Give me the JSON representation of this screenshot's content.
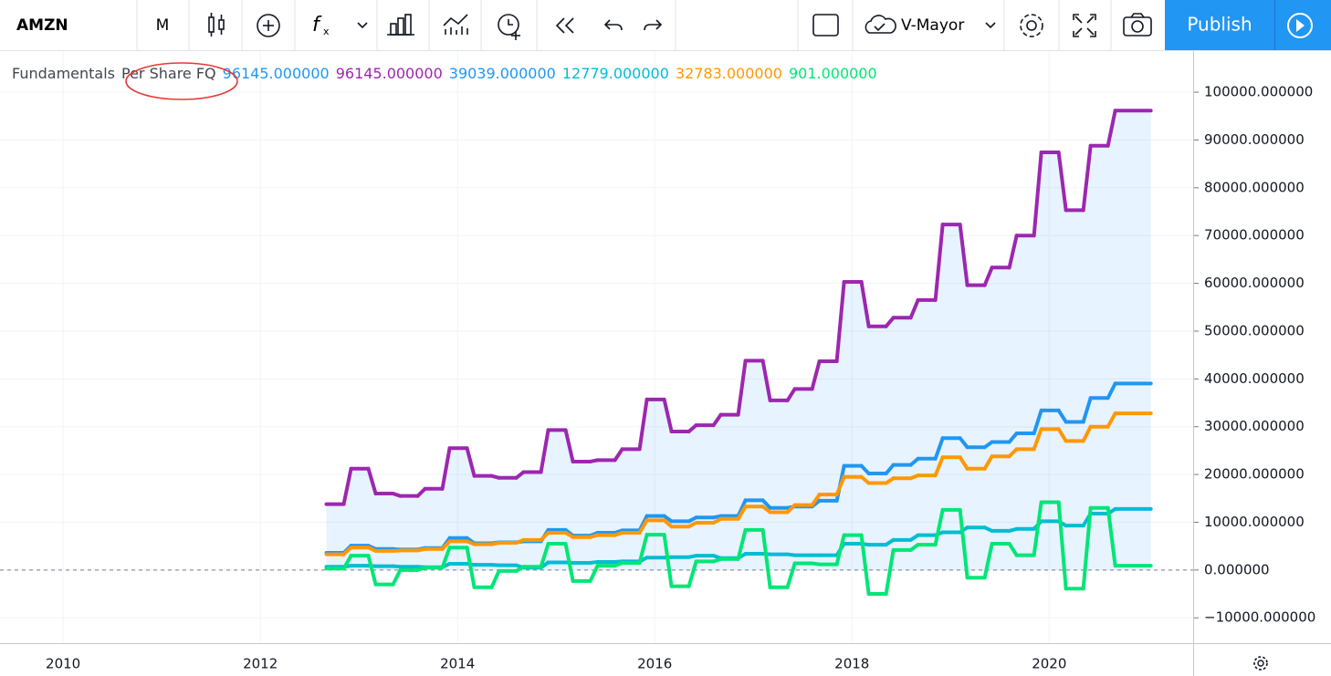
{
  "toolbar": {
    "symbol": "AMZN",
    "interval": "M",
    "layout_name": "V-Mayor",
    "publish": "Publish"
  },
  "chart_data": {
    "type": "line",
    "indicator_name": "Fundamentals",
    "indicator_params": "Per Share FQ",
    "legend_values": [
      {
        "label": "96145.000000",
        "color": "#2196f3"
      },
      {
        "label": "96145.000000",
        "color": "#9c27b0"
      },
      {
        "label": "39039.000000",
        "color": "#2196f3"
      },
      {
        "label": "12779.000000",
        "color": "#00bcd4"
      },
      {
        "label": "32783.000000",
        "color": "#ff9800"
      },
      {
        "label": "901.000000",
        "color": "#00e676"
      }
    ],
    "x": [
      2012.67,
      2012.92,
      2013.17,
      2013.42,
      2013.67,
      2013.92,
      2014.17,
      2014.42,
      2014.67,
      2014.92,
      2015.17,
      2015.42,
      2015.67,
      2015.92,
      2016.17,
      2016.42,
      2016.67,
      2016.92,
      2017.17,
      2017.42,
      2017.67,
      2017.92,
      2018.17,
      2018.42,
      2018.67,
      2018.92,
      2019.17,
      2019.42,
      2019.67,
      2019.92,
      2020.17,
      2020.42,
      2020.67
    ],
    "series": [
      {
        "color": "#9c27b0",
        "fill_color": "rgba(33,150,243,0.11)",
        "values": [
          13800,
          21200,
          16000,
          15500,
          17000,
          25500,
          19700,
          19300,
          20500,
          29300,
          22700,
          23000,
          25300,
          35700,
          29000,
          30300,
          32500,
          43800,
          35500,
          37900,
          43700,
          60300,
          51000,
          52800,
          56500,
          72300,
          59600,
          63300,
          70000,
          87400,
          75300,
          88800,
          96145
        ]
      },
      {
        "color": "#2196f3",
        "values": [
          3600,
          5100,
          4400,
          4300,
          4600,
          6700,
          5600,
          5800,
          6000,
          8400,
          7200,
          7800,
          8300,
          11300,
          10200,
          11000,
          11300,
          14600,
          13000,
          13300,
          14500,
          21800,
          20200,
          22000,
          23300,
          27600,
          25700,
          26800,
          28600,
          33400,
          31000,
          36000,
          39039
        ]
      },
      {
        "color": "#ff9800",
        "values": [
          3300,
          4700,
          4000,
          4100,
          4400,
          6000,
          5400,
          5700,
          6300,
          7800,
          6900,
          7300,
          7800,
          10400,
          9100,
          9900,
          10700,
          13300,
          12100,
          13600,
          15800,
          19500,
          18200,
          19200,
          19800,
          23600,
          21200,
          23800,
          25300,
          29500,
          27000,
          30000,
          32783
        ]
      },
      {
        "color": "#00bcd4",
        "values": [
          700,
          900,
          800,
          700,
          600,
          1300,
          1100,
          1000,
          500,
          1600,
          1500,
          1700,
          1800,
          2600,
          2700,
          3000,
          2500,
          3400,
          3300,
          3100,
          3100,
          5500,
          5300,
          6300,
          7300,
          7900,
          8900,
          8200,
          8600,
          10200,
          9300,
          11800,
          12779
        ]
      },
      {
        "color": "#00e676",
        "values": [
          300,
          3000,
          -3000,
          0,
          500,
          4700,
          -3600,
          -200,
          700,
          5500,
          -2300,
          900,
          1500,
          7400,
          -3400,
          1800,
          2300,
          8400,
          -3600,
          1400,
          1200,
          7300,
          -5000,
          4200,
          5300,
          12600,
          -1600,
          5500,
          3100,
          14200,
          -3900,
          13000,
          901
        ]
      }
    ],
    "xlim": [
      2009.36,
      2021.46
    ],
    "xticks": [
      2010,
      2012,
      2014,
      2016,
      2018,
      2020
    ],
    "ylim": [
      -15300,
      108600
    ],
    "yticks": [
      {
        "value": -10000,
        "label": "−10000.000000"
      },
      {
        "value": 0,
        "label": "0.000000"
      },
      {
        "value": 10000,
        "label": "10000.000000"
      },
      {
        "value": 20000,
        "label": "20000.000000"
      },
      {
        "value": 30000,
        "label": "30000.000000"
      },
      {
        "value": 40000,
        "label": "40000.000000"
      },
      {
        "value": 50000,
        "label": "50000.000000"
      },
      {
        "value": 60000,
        "label": "60000.000000"
      },
      {
        "value": 70000,
        "label": "70000.000000"
      },
      {
        "value": 80000,
        "label": "80000.000000"
      },
      {
        "value": 90000,
        "label": "90000.000000"
      },
      {
        "value": 100000,
        "label": "100000.000000"
      }
    ],
    "grid": true
  }
}
